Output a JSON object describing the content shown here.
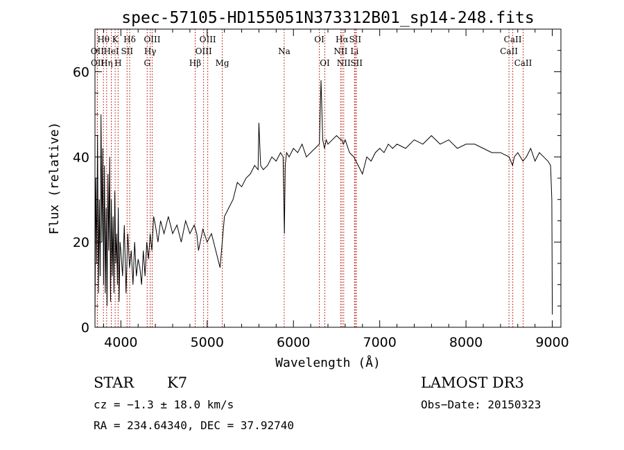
{
  "chart_data": {
    "type": "line",
    "title": "spec-57105-HD155051N373312B01_sp14-248.fits",
    "xlabel": "Wavelength (Å)",
    "ylabel": "Flux (relative)",
    "xlim": [
      3700,
      9100
    ],
    "ylim": [
      0,
      70
    ],
    "xticks": [
      "4000",
      "5000",
      "6000",
      "7000",
      "8000",
      "9000"
    ],
    "yticks": [
      "0",
      "20",
      "40",
      "60"
    ],
    "series": [
      {
        "x": [
          3700,
          3710,
          3720,
          3730,
          3740,
          3750,
          3760,
          3770,
          3780,
          3790,
          3800,
          3810,
          3820,
          3830,
          3840,
          3850,
          3860,
          3870,
          3880,
          3890,
          3900,
          3910,
          3920,
          3930,
          3940,
          3950,
          3960,
          3970,
          3980,
          3990,
          4000,
          4020,
          4040,
          4060,
          4080,
          4100,
          4120,
          4140,
          4160,
          4180,
          4200,
          4220,
          4240,
          4260,
          4280,
          4300,
          4320,
          4340,
          4360,
          4380,
          4400,
          4430,
          4460,
          4500,
          4550,
          4600,
          4650,
          4700,
          4750,
          4800,
          4850,
          4880,
          4900,
          4950,
          5000,
          5050,
          5100,
          5150,
          5200,
          5250,
          5300,
          5350,
          5400,
          5450,
          5500,
          5550,
          5590,
          5600,
          5620,
          5650,
          5700,
          5750,
          5800,
          5850,
          5880,
          5895,
          5905,
          5920,
          5950,
          6000,
          6050,
          6100,
          6150,
          6200,
          6250,
          6300,
          6320,
          6340,
          6360,
          6380,
          6400,
          6450,
          6500,
          6550,
          6563,
          6580,
          6600,
          6650,
          6700,
          6750,
          6800,
          6850,
          6900,
          6950,
          7000,
          7050,
          7100,
          7150,
          7200,
          7300,
          7400,
          7500,
          7600,
          7700,
          7800,
          7900,
          8000,
          8100,
          8200,
          8300,
          8400,
          8500,
          8540,
          8560,
          8600,
          8660,
          8700,
          8750,
          8800,
          8850,
          8900,
          8950,
          8980,
          8995,
          9000
        ],
        "y": [
          2,
          35,
          15,
          45,
          8,
          30,
          12,
          50,
          20,
          42,
          10,
          38,
          8,
          28,
          5,
          36,
          18,
          40,
          6,
          30,
          12,
          26,
          8,
          32,
          15,
          22,
          10,
          28,
          6,
          20,
          18,
          12,
          24,
          8,
          22,
          14,
          18,
          10,
          20,
          12,
          16,
          14,
          10,
          18,
          12,
          20,
          16,
          22,
          18,
          26,
          24,
          20,
          25,
          22,
          26,
          22,
          24,
          20,
          25,
          22,
          24,
          22,
          18,
          23,
          20,
          22,
          18,
          14,
          26,
          28,
          30,
          34,
          33,
          35,
          36,
          38,
          37,
          48,
          38,
          37,
          38,
          40,
          39,
          41,
          40,
          22,
          38,
          41,
          40,
          42,
          41,
          43,
          40,
          41,
          42,
          43,
          58,
          44,
          42,
          44,
          43,
          44,
          45,
          44,
          44,
          43,
          44,
          41,
          40,
          38,
          36,
          40,
          39,
          41,
          42,
          41,
          43,
          42,
          43,
          42,
          44,
          43,
          45,
          43,
          44,
          42,
          43,
          43,
          42,
          41,
          41,
          40,
          38,
          40,
          41,
          39,
          40,
          42,
          39,
          41,
          40,
          39,
          38,
          30,
          3
        ]
      }
    ],
    "spectral_lines": [
      {
        "name": "Hθ",
        "x": 3798,
        "row": 0
      },
      {
        "name": "OII",
        "x": 3727,
        "row": 1
      },
      {
        "name": "OII",
        "x": 3729,
        "row": 2
      },
      {
        "name": "Hη",
        "x": 3835,
        "row": 2
      },
      {
        "name": "HeI",
        "x": 3889,
        "row": 1
      },
      {
        "name": "K",
        "x": 3934,
        "row": 0
      },
      {
        "name": "H",
        "x": 3968,
        "row": 2
      },
      {
        "name": "SII",
        "x": 4072,
        "row": 1
      },
      {
        "name": "Hδ",
        "x": 4102,
        "row": 0
      },
      {
        "name": "OIII",
        "x": 4363,
        "row": 0
      },
      {
        "name": "Hγ",
        "x": 4340,
        "row": 1
      },
      {
        "name": "G",
        "x": 4305,
        "row": 2
      },
      {
        "name": "Hβ",
        "x": 4861,
        "row": 2
      },
      {
        "name": "OIII",
        "x": 5007,
        "row": 0
      },
      {
        "name": "OIII",
        "x": 4959,
        "row": 1
      },
      {
        "name": "Mg",
        "x": 5175,
        "row": 2
      },
      {
        "name": "Na",
        "x": 5893,
        "row": 1
      },
      {
        "name": "OI",
        "x": 6300,
        "row": 0
      },
      {
        "name": "OI",
        "x": 6364,
        "row": 2
      },
      {
        "name": "Hα",
        "x": 6563,
        "row": 0
      },
      {
        "name": "NII",
        "x": 6548,
        "row": 1
      },
      {
        "name": "NII",
        "x": 6583,
        "row": 2
      },
      {
        "name": "SII",
        "x": 6716,
        "row": 0
      },
      {
        "name": "Li",
        "x": 6708,
        "row": 1
      },
      {
        "name": "SII",
        "x": 6731,
        "row": 2
      },
      {
        "name": "CaII",
        "x": 8542,
        "row": 0
      },
      {
        "name": "CaII",
        "x": 8498,
        "row": 1
      },
      {
        "name": "CaII",
        "x": 8662,
        "row": 2
      }
    ],
    "legend": "none"
  },
  "info": {
    "class": "STAR",
    "subclass": "K7",
    "survey": "LAMOST DR3",
    "redshift": "cz = −1.3 ± 18.0 km/s",
    "obsdate": "Obs−Date: 20150323",
    "coords": "RA = 234.64340, DEC =  37.92740"
  },
  "colors": {
    "line_marker": "#c0392b",
    "spectrum": "#000000"
  }
}
